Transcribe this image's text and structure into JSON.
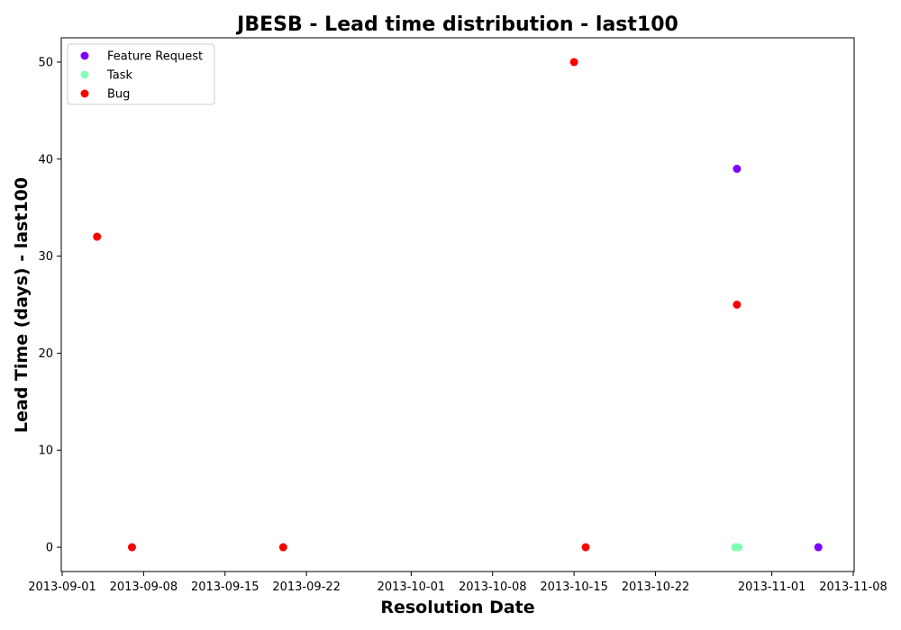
{
  "chart_data": {
    "type": "scatter",
    "title": "JBESB - Lead time distribution - last100",
    "xlabel": "Resolution Date",
    "ylabel": "Lead Time (days) - last100",
    "x_type": "date",
    "xlim": [
      "2013-09-01",
      "2013-11-08"
    ],
    "ylim": [
      -2.5,
      52.5
    ],
    "x_ticks": [
      "2013-09-01",
      "2013-09-08",
      "2013-09-15",
      "2013-09-22",
      "2013-10-01",
      "2013-10-08",
      "2013-10-15",
      "2013-10-22",
      "2013-11-01",
      "2013-11-08"
    ],
    "y_ticks": [
      0,
      10,
      20,
      30,
      40,
      50
    ],
    "grid": false,
    "legend_position": "top-left",
    "series": [
      {
        "name": "Feature Request",
        "color": "#8000ff",
        "points": [
          {
            "x": "2013-10-29",
            "y": 39
          },
          {
            "x": "2013-11-05",
            "y": 0
          }
        ]
      },
      {
        "name": "Task",
        "color": "#80ffb4",
        "points": [
          {
            "x": "2013-10-29",
            "y": 0
          },
          {
            "x": "2013-10-29",
            "y": 0
          }
        ]
      },
      {
        "name": "Bug",
        "color": "#ff0000",
        "points": [
          {
            "x": "2013-09-04",
            "y": 32
          },
          {
            "x": "2013-09-07",
            "y": 0
          },
          {
            "x": "2013-09-20",
            "y": 0
          },
          {
            "x": "2013-10-15",
            "y": 50
          },
          {
            "x": "2013-10-16",
            "y": 0
          },
          {
            "x": "2013-10-29",
            "y": 25
          }
        ]
      }
    ]
  }
}
